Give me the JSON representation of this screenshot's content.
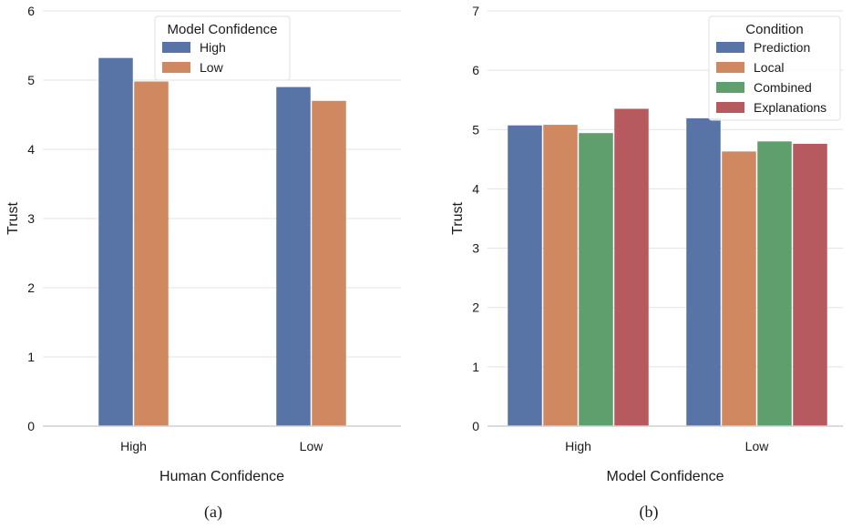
{
  "chart_data": [
    {
      "type": "bar",
      "caption": "(a)",
      "xlabel": "Human Confidence",
      "ylabel": "Trust",
      "categories": [
        "High",
        "Low"
      ],
      "ylim": [
        0,
        6
      ],
      "yticks": [
        0,
        1,
        2,
        3,
        4,
        5,
        6
      ],
      "legend": {
        "title": "Model Confidence",
        "placement": "top-center"
      },
      "series": [
        {
          "name": "High",
          "color": "#5874a6",
          "values": [
            5.32,
            4.9
          ]
        },
        {
          "name": "Low",
          "color": "#d08860",
          "values": [
            4.98,
            4.7
          ]
        }
      ]
    },
    {
      "type": "bar",
      "caption": "(b)",
      "xlabel": "Model Confidence",
      "ylabel": "Trust",
      "categories": [
        "High",
        "Low"
      ],
      "ylim": [
        0,
        7
      ],
      "yticks": [
        0,
        1,
        2,
        3,
        4,
        5,
        6,
        7
      ],
      "legend": {
        "title": "Condition",
        "placement": "top-right"
      },
      "series": [
        {
          "name": "Prediction",
          "color": "#5874a6",
          "values": [
            5.07,
            5.19
          ]
        },
        {
          "name": "Local",
          "color": "#d08860",
          "values": [
            5.08,
            4.63
          ]
        },
        {
          "name": "Combined",
          "color": "#5f9f6e",
          "values": [
            4.94,
            4.8
          ]
        },
        {
          "name": "Explanations",
          "color": "#b65a5f",
          "values": [
            5.35,
            4.76
          ]
        }
      ]
    }
  ]
}
